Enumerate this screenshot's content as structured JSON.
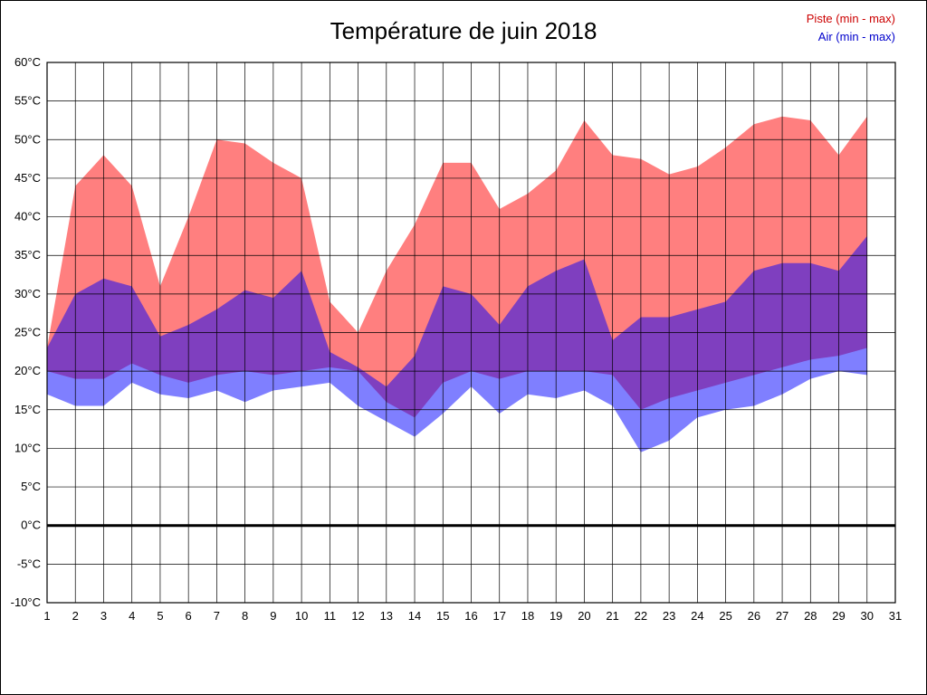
{
  "title": "Température de juin 2018",
  "legend": [
    {
      "label": "Piste (min - max)",
      "color": "#cc0000"
    },
    {
      "label": "Air (min - max)",
      "color": "#0000cc"
    }
  ],
  "chart_data": {
    "type": "area",
    "title": "Température de juin 2018",
    "xlim": [
      1,
      31
    ],
    "ylim": [
      -10,
      60
    ],
    "x_ticks": [
      1,
      2,
      3,
      4,
      5,
      6,
      7,
      8,
      9,
      10,
      11,
      12,
      13,
      14,
      15,
      16,
      17,
      18,
      19,
      20,
      21,
      22,
      23,
      24,
      25,
      26,
      27,
      28,
      29,
      30,
      31
    ],
    "y_ticks": [
      -10,
      -5,
      0,
      5,
      10,
      15,
      20,
      25,
      30,
      35,
      40,
      45,
      50,
      55,
      60
    ],
    "y_suffix": "°C",
    "grid": true,
    "grid_color": "#000000",
    "zero_line_value": 0,
    "legend_position": "top-right",
    "x": [
      1,
      2,
      3,
      4,
      5,
      6,
      7,
      8,
      9,
      10,
      11,
      12,
      13,
      14,
      15,
      16,
      17,
      18,
      19,
      20,
      21,
      22,
      23,
      24,
      25,
      26,
      27,
      28,
      29,
      30
    ],
    "series": [
      {
        "name": "Piste (min - max)",
        "fill": "#ff0000",
        "fill_opacity": 0.5,
        "min": [
          20,
          19,
          19,
          21,
          19.5,
          18.5,
          19.5,
          20,
          19.5,
          20,
          20.5,
          20,
          16,
          14,
          18.5,
          20,
          19,
          20,
          20,
          20,
          19.5,
          15,
          16.5,
          17.5,
          18.5,
          19.5,
          20.5,
          21.5,
          22,
          23
        ],
        "max": [
          23,
          44,
          48,
          44,
          31,
          40,
          50,
          49.5,
          47,
          45,
          29,
          25,
          33,
          39,
          47,
          47,
          41,
          43,
          46,
          52.5,
          48,
          47.5,
          45.5,
          46.5,
          49,
          52,
          53,
          52.5,
          48,
          53
        ]
      },
      {
        "name": "Air (min - max)",
        "fill": "#0000ff",
        "fill_opacity": 0.5,
        "min": [
          17,
          15.5,
          15.5,
          18.5,
          17,
          16.5,
          17.5,
          16,
          17.5,
          18,
          18.5,
          15.5,
          13.5,
          11.5,
          14.5,
          18,
          14.5,
          17,
          16.5,
          17.5,
          15.5,
          9.5,
          11,
          14,
          15,
          15.5,
          17,
          19,
          20,
          19.5
        ],
        "max": [
          23,
          30,
          32,
          31,
          24.5,
          26,
          28,
          30.5,
          29.5,
          33,
          22.5,
          20.5,
          18,
          22,
          31,
          30,
          26,
          31,
          33,
          34.5,
          24,
          27,
          27,
          28,
          29,
          33,
          34,
          34,
          33,
          37.5
        ]
      }
    ]
  }
}
